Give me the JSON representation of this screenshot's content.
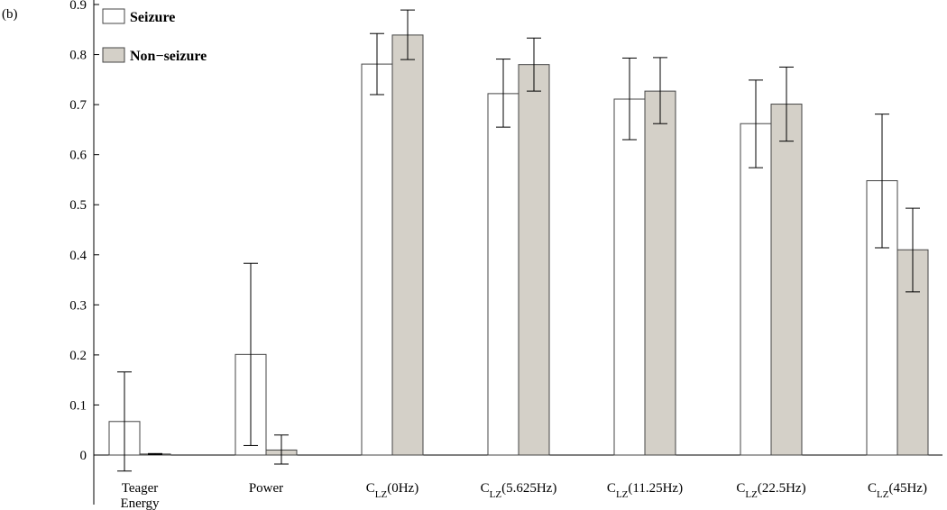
{
  "panel_label": "(b)",
  "chart_data": {
    "type": "bar",
    "categories": [
      {
        "main": "Teager",
        "line2": "Energy"
      },
      {
        "main": "Power"
      },
      {
        "main": "C",
        "sub": "LZ",
        "rest": "(0Hz)"
      },
      {
        "main": "C",
        "sub": "LZ",
        "rest": "(5.625Hz)"
      },
      {
        "main": "C",
        "sub": "LZ",
        "rest": "(11.25Hz)"
      },
      {
        "main": "C",
        "sub": "LZ",
        "rest": "(22.5Hz)"
      },
      {
        "main": "C",
        "sub": "LZ",
        "rest": "(45Hz)"
      }
    ],
    "series": [
      {
        "name": "Seizure",
        "color": "#ffffff",
        "values": [
          0.067,
          0.201,
          0.781,
          0.722,
          0.711,
          0.662,
          0.548
        ],
        "err_low": [
          -0.032,
          0.019,
          0.72,
          0.655,
          0.63,
          0.574,
          0.414
        ],
        "err_high": [
          0.166,
          0.383,
          0.842,
          0.791,
          0.793,
          0.749,
          0.681
        ]
      },
      {
        "name": "Non−seizure",
        "color": "#d4d0c8",
        "values": [
          0.002,
          0.01,
          0.839,
          0.78,
          0.727,
          0.701,
          0.41
        ],
        "err_low": [
          0.001,
          -0.018,
          0.79,
          0.727,
          0.662,
          0.627,
          0.326
        ],
        "err_high": [
          0.003,
          0.04,
          0.889,
          0.833,
          0.794,
          0.775,
          0.493
        ]
      }
    ],
    "ylim": [
      -0.1,
      0.9
    ],
    "yticks": [
      "0",
      "0.1",
      "0.2",
      "0.3",
      "0.4",
      "0.5",
      "0.6",
      "0.7",
      "0.8",
      "0.9"
    ],
    "legend_position": "top-left",
    "grid": false,
    "title": "",
    "xlabel": "",
    "ylabel": ""
  }
}
